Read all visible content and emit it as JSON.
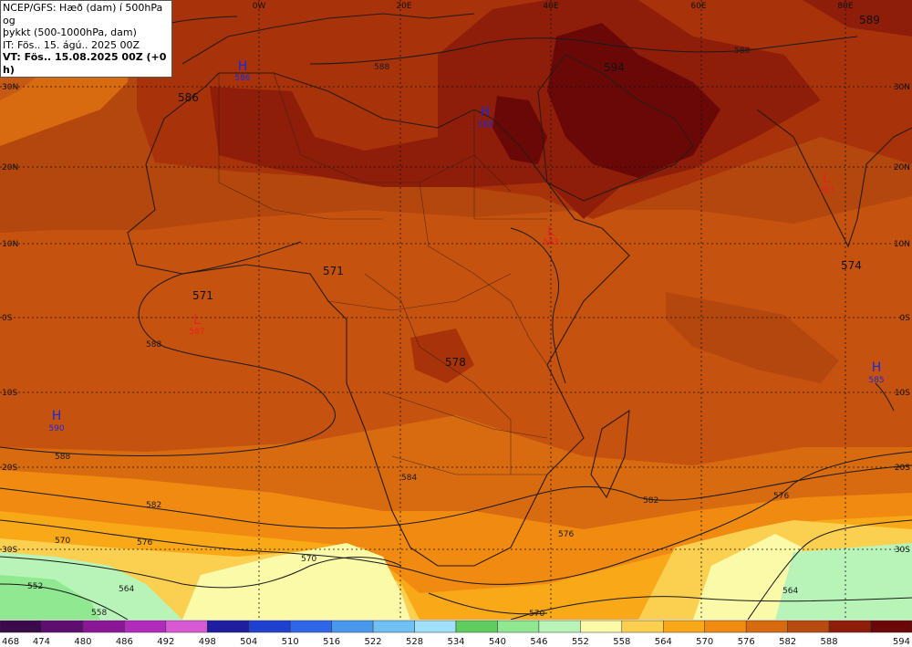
{
  "header": {
    "line1": "NCEP/GFS: Hæð (dam) í 500hPa og",
    "line2": "þykkt (500-1000hPa, dam)",
    "line3": "IT: Fös.. 15. ágú.. 2025 00Z",
    "line4": "VT: Fös.. 15.08.2025 00Z (+0 h)"
  },
  "grid": {
    "lon_labels": [
      "0W",
      "20E",
      "40E",
      "60E",
      "80E"
    ],
    "lat_labels": [
      "30N",
      "20N",
      "10N",
      "0S",
      "10S",
      "20S",
      "30S"
    ]
  },
  "pressure_centers": [
    {
      "type": "H",
      "value": "586",
      "name": "high-center-nw-africa"
    },
    {
      "type": "H",
      "value": "588",
      "name": "high-center-arabia"
    },
    {
      "type": "H",
      "value": "590",
      "name": "high-center-south-atlantic"
    },
    {
      "type": "H",
      "value": "585",
      "name": "high-center-indian-ocean"
    },
    {
      "type": "L",
      "value": "587",
      "name": "low-center-gulf-guinea"
    },
    {
      "type": "L",
      "value": "583",
      "name": "low-center-horn-africa"
    },
    {
      "type": "L",
      "value": "583",
      "name": "low-center-india"
    }
  ],
  "thickness_labels": [
    "586",
    "594",
    "589",
    "571",
    "571",
    "578",
    "574"
  ],
  "contour_labels": [
    "588",
    "588",
    "588",
    "588",
    "588",
    "582",
    "582",
    "576",
    "576",
    "570",
    "570",
    "570",
    "564",
    "564",
    "552",
    "558",
    "576",
    "584"
  ],
  "legend": {
    "values": [
      "468",
      "474",
      "480",
      "486",
      "492",
      "498",
      "504",
      "510",
      "516",
      "522",
      "528",
      "534",
      "540",
      "546",
      "552",
      "558",
      "564",
      "570",
      "576",
      "582",
      "588",
      "594"
    ],
    "colors": [
      "#3a0a4a",
      "#5e0e6e",
      "#8a1896",
      "#b22cbc",
      "#d85ad2",
      "#1e1e9e",
      "#2040d0",
      "#3066e8",
      "#4a98ee",
      "#70c0f4",
      "#a0e0f8",
      "#60cc60",
      "#90e890",
      "#b8f4b8",
      "#fafaa8",
      "#fbd050",
      "#f9a818",
      "#f08a10",
      "#d86a10",
      "#b84c10",
      "#8e1e0a",
      "#6a0808"
    ]
  }
}
